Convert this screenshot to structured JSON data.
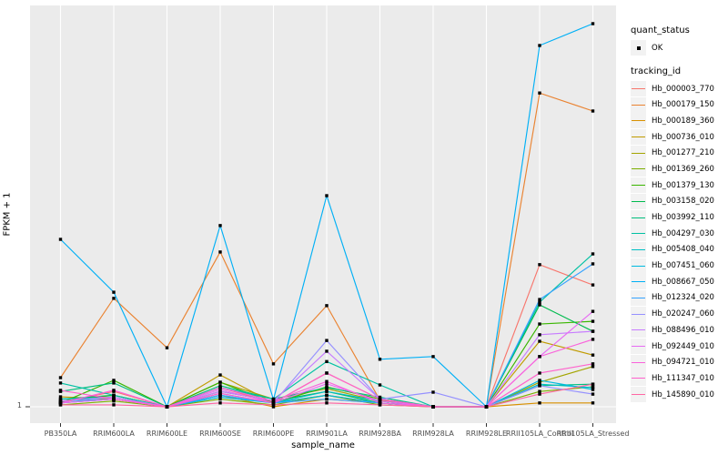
{
  "chart_data": {
    "type": "line",
    "title": "",
    "xlabel": "sample_name",
    "ylabel": "FPKM + 1",
    "y_ticks": [
      "1"
    ],
    "y_scale_note": "log-style axis; single visible tick at 1; series values below are relative heights where 0 = tick '1' baseline and 1 = maximum plotted point",
    "grid": "on",
    "legend_position": "right",
    "point_marker_color": "#000000",
    "panel_bg": "#ebebeb",
    "gridline_color": "#ffffff",
    "axis_text_color": "#4d4d4d",
    "categories": [
      "PB350LA",
      "RRIM600LA",
      "RRIM600LE",
      "RRIM600SE",
      "RRIM600PE",
      "RRIM901LA",
      "RRIM928BA",
      "RRIM928LA",
      "RRIM928LE",
      "RRII105LA_Control",
      "RRII105LA_Stressed"
    ],
    "series": [
      {
        "name": "Hb_000003_770",
        "color": "#F8766D",
        "values": [
          0.01,
          0.04,
          0.0,
          0.05,
          0.01,
          0.088,
          0.02,
          0.0,
          0.0,
          0.371,
          0.318
        ]
      },
      {
        "name": "Hb_000179_150",
        "color": "#EA8331",
        "values": [
          0.076,
          0.283,
          0.154,
          0.404,
          0.112,
          0.264,
          0.017,
          0.0,
          0.0,
          0.819,
          0.772
        ]
      },
      {
        "name": "Hb_000189_360",
        "color": "#D89000",
        "values": [
          0.01,
          0.02,
          0.0,
          0.03,
          0.0,
          0.02,
          0.01,
          0.0,
          0.0,
          0.01,
          0.01
        ]
      },
      {
        "name": "Hb_000736_010",
        "color": "#C09B00",
        "values": [
          0.026,
          0.02,
          0.0,
          0.083,
          0.01,
          0.03,
          0.01,
          0.0,
          0.0,
          0.171,
          0.135
        ]
      },
      {
        "name": "Hb_001277_210",
        "color": "#A3A500",
        "values": [
          0.015,
          0.03,
          0.0,
          0.064,
          0.02,
          0.047,
          0.015,
          0.0,
          0.0,
          0.064,
          0.105
        ]
      },
      {
        "name": "Hb_001369_260",
        "color": "#7CAE00",
        "values": [
          0.005,
          0.015,
          0.0,
          0.02,
          0.005,
          0.03,
          0.005,
          0.0,
          0.0,
          0.04,
          0.052
        ]
      },
      {
        "name": "Hb_001379_130",
        "color": "#39B600",
        "values": [
          0.01,
          0.069,
          0.0,
          0.064,
          0.01,
          0.052,
          0.02,
          0.0,
          0.0,
          0.216,
          0.223
        ]
      },
      {
        "name": "Hb_003158_020",
        "color": "#00BB4E",
        "values": [
          0.02,
          0.03,
          0.0,
          0.04,
          0.015,
          0.04,
          0.01,
          0.0,
          0.0,
          0.266,
          0.197
        ]
      },
      {
        "name": "Hb_003992_110",
        "color": "#00BF7D",
        "values": [
          0.04,
          0.062,
          0.0,
          0.055,
          0.02,
          0.05,
          0.025,
          0.0,
          0.0,
          0.055,
          0.059
        ]
      },
      {
        "name": "Hb_004297_030",
        "color": "#00C1A3",
        "values": [
          0.062,
          0.03,
          0.0,
          0.05,
          0.02,
          0.118,
          0.057,
          0.0,
          0.0,
          0.273,
          0.399
        ]
      },
      {
        "name": "Hb_005408_040",
        "color": "#00BFC4",
        "values": [
          0.02,
          0.025,
          0.0,
          0.03,
          0.01,
          0.04,
          0.015,
          0.0,
          0.0,
          0.059,
          0.05
        ]
      },
      {
        "name": "Hb_007451_060",
        "color": "#00BAE0",
        "values": [
          0.015,
          0.02,
          0.0,
          0.025,
          0.01,
          0.03,
          0.01,
          0.0,
          0.0,
          0.069,
          0.045
        ]
      },
      {
        "name": "Hb_008667_050",
        "color": "#00B0F6",
        "values": [
          0.437,
          0.299,
          0.0,
          0.473,
          0.019,
          0.551,
          0.124,
          0.131,
          0.0,
          0.943,
          1.0
        ]
      },
      {
        "name": "Hb_012324_020",
        "color": "#35A2FF",
        "values": [
          0.01,
          0.02,
          0.0,
          0.03,
          0.01,
          0.02,
          0.01,
          0.0,
          0.0,
          0.28,
          0.373
        ]
      },
      {
        "name": "Hb_020247_060",
        "color": "#9590FF",
        "values": [
          0.01,
          0.02,
          0.0,
          0.035,
          0.01,
          0.173,
          0.02,
          0.038,
          0.0,
          0.055,
          0.033
        ]
      },
      {
        "name": "Hb_088496_010",
        "color": "#C77CFF",
        "values": [
          0.015,
          0.025,
          0.0,
          0.04,
          0.015,
          0.145,
          0.02,
          0.0,
          0.0,
          0.188,
          0.197
        ]
      },
      {
        "name": "Hb_092449_010",
        "color": "#E76BF3",
        "values": [
          0.01,
          0.02,
          0.0,
          0.045,
          0.01,
          0.06,
          0.015,
          0.0,
          0.0,
          0.131,
          0.249
        ]
      },
      {
        "name": "Hb_094721_010",
        "color": "#FA62DB",
        "values": [
          0.01,
          0.043,
          0.0,
          0.05,
          0.015,
          0.066,
          0.01,
          0.0,
          0.0,
          0.131,
          0.176
        ]
      },
      {
        "name": "Hb_111347_010",
        "color": "#FF61CC",
        "values": [
          0.043,
          0.02,
          0.0,
          0.035,
          0.01,
          0.088,
          0.02,
          0.0,
          0.0,
          0.088,
          0.112
        ]
      },
      {
        "name": "Hb_145890_010",
        "color": "#FF67A4",
        "values": [
          0.005,
          0.005,
          0.0,
          0.01,
          0.005,
          0.01,
          0.005,
          0.0,
          0.0,
          0.033,
          0.059
        ]
      }
    ]
  },
  "legend": {
    "quant_status": {
      "title": "quant_status",
      "items": [
        "OK"
      ]
    },
    "tracking_id": {
      "title": "tracking_id"
    }
  },
  "axes": {
    "x_title": "sample_name",
    "y_title": "FPKM + 1",
    "y_tick": "1"
  }
}
